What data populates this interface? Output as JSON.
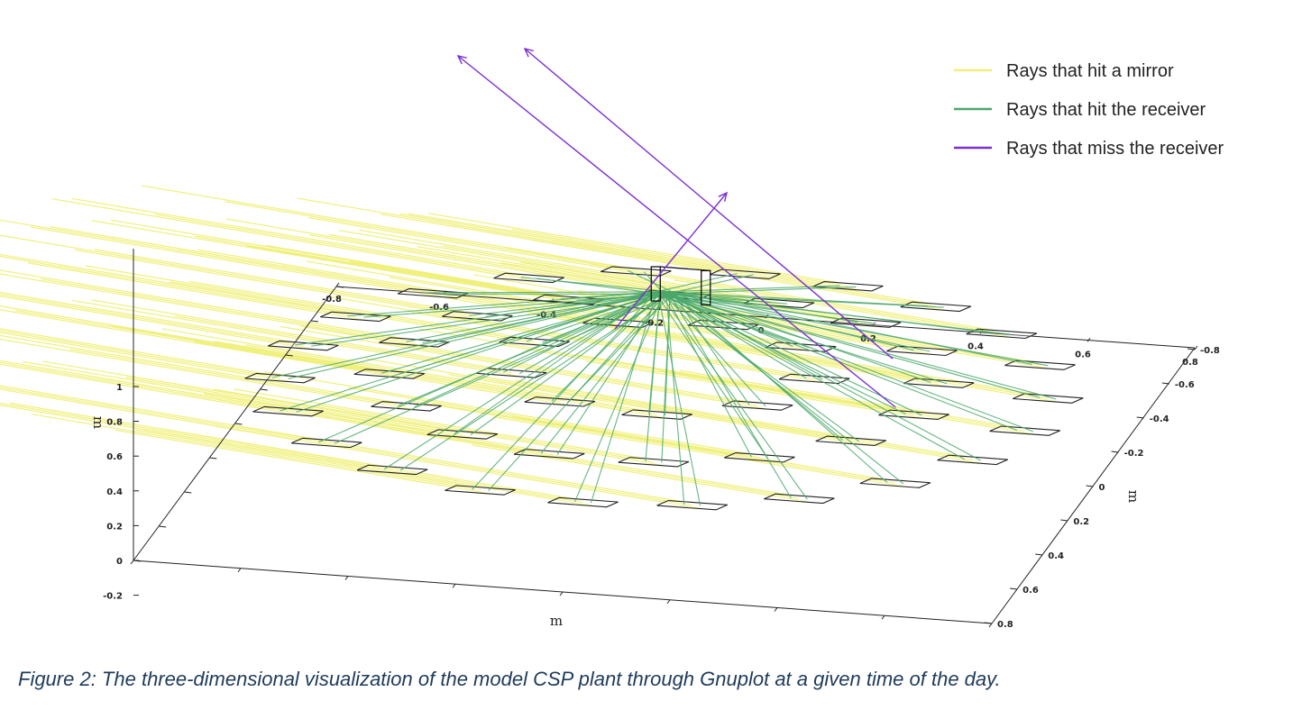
{
  "caption": "Figure 2: The three-dimensional visualization of the model CSP plant through Gnuplot at a given time of the day.",
  "chart_data": {
    "type": "scatter",
    "title": "",
    "xlabel": "m",
    "ylabel": "m",
    "zlabel": "m",
    "x_ticks": [
      "-0.8",
      "-0.6",
      "-0.4",
      "-0.2",
      "0",
      "0.2",
      "0.4",
      "0.6",
      "0.8"
    ],
    "y_ticks": [
      "-0.8",
      "-0.6",
      "-0.4",
      "-0.2",
      "0",
      "0.2",
      "0.4",
      "0.6",
      "0.8"
    ],
    "z_ticks": [
      "1",
      "0.8",
      "0.6",
      "0.4",
      "0.2",
      "0",
      "-0.2"
    ],
    "xlim": [
      -0.8,
      0.8
    ],
    "ylim": [
      -0.8,
      0.8
    ],
    "zlim": [
      -0.2,
      1
    ],
    "grid": false,
    "legend_position": "top-right",
    "series": [
      {
        "name": "Rays that hit a mirror",
        "color": "#f0f07a"
      },
      {
        "name": "Rays that hit the receiver",
        "color": "#4aa86a"
      },
      {
        "name": "Rays that miss the receiver",
        "color": "#7b2fd0"
      }
    ],
    "mirror_rings": [
      {
        "radius": 0.28,
        "count": 9
      },
      {
        "radius": 0.5,
        "count": 16
      },
      {
        "radius": 0.7,
        "count": 22
      }
    ],
    "receiver_height": 0.9
  }
}
